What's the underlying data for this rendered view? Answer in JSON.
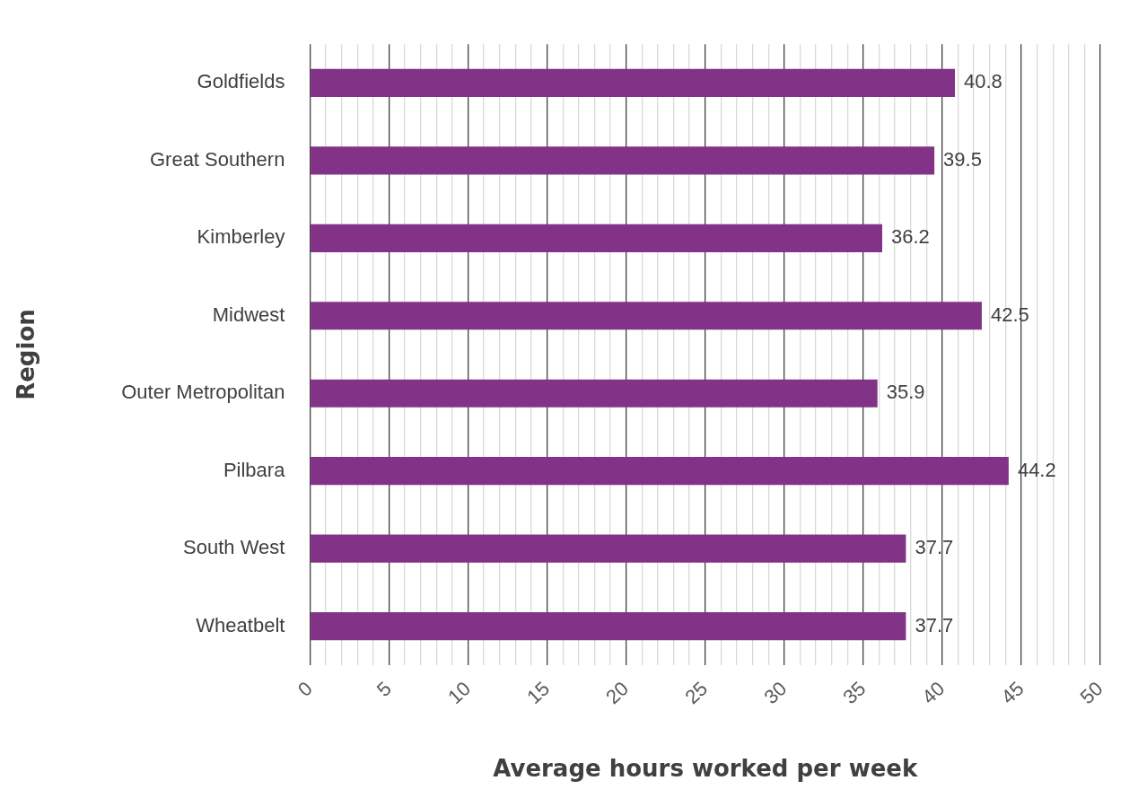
{
  "chart_data": {
    "type": "bar",
    "orientation": "horizontal",
    "xlabel": "Average hours worked per week",
    "ylabel": "Region",
    "categories": [
      "Goldfields",
      "Great Southern",
      "Kimberley",
      "Midwest",
      "Outer Metropolitan",
      "Pilbara",
      "South West",
      "Wheatbelt"
    ],
    "values": [
      40.8,
      39.5,
      36.2,
      42.5,
      35.9,
      44.2,
      37.7,
      37.7
    ],
    "color": "#833387",
    "data_labels": true,
    "grid": "x",
    "legend": false,
    "xlim": [
      0,
      50
    ],
    "xticks": [
      0,
      {
        "value": 1,
        "label": null
      },
      {
        "value": 2,
        "label": null
      },
      {
        "value": 3,
        "label": null
      },
      {
        "value": 4,
        "label": null
      },
      5,
      {
        "value": 6,
        "label": null
      },
      {
        "value": 7,
        "label": null
      },
      {
        "value": 8,
        "label": null
      },
      {
        "value": 9,
        "label": null
      },
      10,
      {
        "value": 11,
        "label": null
      },
      {
        "value": 12,
        "label": null
      },
      {
        "value": 13,
        "label": null
      },
      {
        "value": 14,
        "label": null
      },
      15,
      {
        "value": 16,
        "label": null
      },
      {
        "value": 17,
        "label": null
      },
      {
        "value": 18,
        "label": null
      },
      {
        "value": 19,
        "label": null
      },
      20,
      {
        "value": 21,
        "label": null
      },
      {
        "value": 22,
        "label": null
      },
      {
        "value": 23,
        "label": null
      },
      {
        "value": 24,
        "label": null
      },
      25,
      {
        "value": 26,
        "label": null
      },
      {
        "value": 27,
        "label": null
      },
      {
        "value": 28,
        "label": null
      },
      {
        "value": 29,
        "label": null
      },
      30,
      {
        "value": 31,
        "label": null
      },
      {
        "value": 32,
        "label": null
      },
      {
        "value": 33,
        "label": null
      },
      {
        "value": 34,
        "label": null
      },
      35,
      {
        "value": 36,
        "label": null
      },
      {
        "value": 37,
        "label": null
      },
      {
        "value": 38,
        "label": null
      },
      {
        "value": 39,
        "label": null
      },
      40,
      {
        "value": 41,
        "label": null
      },
      {
        "value": 42,
        "label": null
      },
      {
        "value": 43,
        "label": null
      },
      {
        "value": 44,
        "label": null
      },
      45,
      {
        "value": 46,
        "label": null
      },
      {
        "value": 47,
        "label": null
      },
      {
        "value": 48,
        "label": null
      },
      {
        "value": 49,
        "label": null
      },
      50
    ]
  }
}
